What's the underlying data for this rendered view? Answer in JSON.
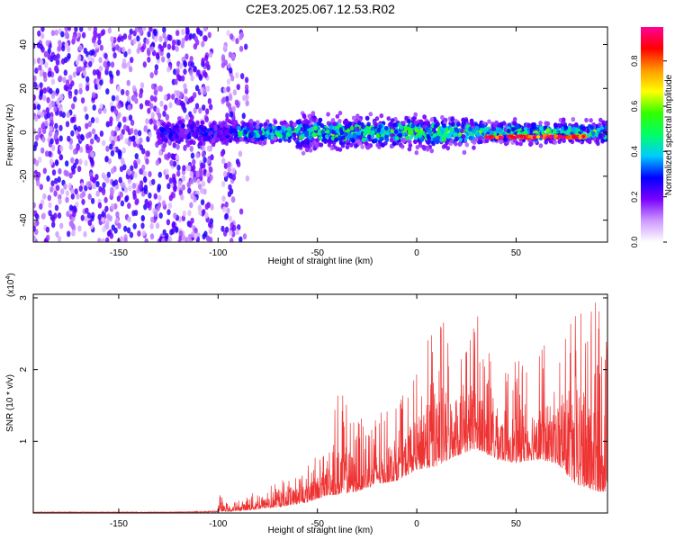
{
  "title": "C2E3.2025.067.12.53.R02",
  "chart_data": [
    {
      "type": "heatmap",
      "xlabel": "Height of straight line (km)",
      "ylabel": "Frequency (Hz)",
      "xlim": [
        -193,
        96
      ],
      "ylim": [
        -50,
        48
      ],
      "x_ticks": [
        -150,
        -100,
        -50,
        0,
        50
      ],
      "x_tick_labels": [
        "-150",
        "-100",
        "-50",
        "0",
        "50"
      ],
      "y_ticks": [
        40,
        20,
        0,
        -20,
        -40
      ],
      "y_tick_labels": [
        "40",
        "20",
        "0",
        "-20",
        "-40"
      ],
      "colorbar": {
        "label": "Normalized spectral amplitude",
        "range": [
          0,
          0.95
        ],
        "ticks": [
          0.0,
          0.2,
          0.4,
          0.6,
          0.8
        ],
        "tick_labels": [
          "0.0",
          "0.2",
          "0.4",
          "0.6",
          "0.8"
        ],
        "colormap": [
          "#ffffff",
          "#cc99ff",
          "#7a00ff",
          "#0000ff",
          "#00ccff",
          "#00ff66",
          "#33ff00",
          "#ffff00",
          "#ff9900",
          "#ff0000",
          "#ff0099"
        ]
      },
      "features": {
        "noise_region_x": [
          -193,
          -85
        ],
        "signal_band_center_hz": 0,
        "signal_band_halfwidth_hz": 6,
        "strong_segment_x": [
          35,
          85
        ],
        "strong_segment_hz": -2
      }
    },
    {
      "type": "line",
      "xlabel": "Height of straight line (km)",
      "ylabel": "SNR (10 * v/v)",
      "y_scale_label": "(x10^4)",
      "y_scale_base": "x10",
      "y_scale_exp": "4",
      "xlim": [
        -193,
        96
      ],
      "ylim": [
        0,
        3.05
      ],
      "x_ticks": [
        -150,
        -100,
        -50,
        0,
        50
      ],
      "x_tick_labels": [
        "-150",
        "-100",
        "-50",
        "0",
        "50"
      ],
      "y_ticks": [
        1,
        2,
        3
      ],
      "y_tick_labels": [
        "1",
        "2",
        "3"
      ],
      "color": "#ee3333",
      "envelope": {
        "x": [
          -193,
          -120,
          -100,
          -95,
          -85,
          -70,
          -55,
          -45,
          -40,
          -30,
          -20,
          -10,
          0,
          10,
          20,
          30,
          40,
          50,
          60,
          70,
          80,
          90,
          96
        ],
        "baseline": [
          0.01,
          0.01,
          0.02,
          0.02,
          0.04,
          0.08,
          0.15,
          0.25,
          0.25,
          0.3,
          0.4,
          0.45,
          0.6,
          0.65,
          0.8,
          0.9,
          0.75,
          0.7,
          0.75,
          0.7,
          0.4,
          0.3,
          0.3
        ],
        "peak": [
          0.02,
          0.03,
          0.3,
          0.12,
          0.25,
          0.45,
          0.7,
          1.0,
          1.8,
          1.3,
          1.4,
          1.5,
          2.0,
          2.8,
          2.6,
          2.9,
          2.2,
          2.1,
          2.5,
          2.2,
          2.8,
          3.0,
          2.5
        ]
      }
    }
  ]
}
